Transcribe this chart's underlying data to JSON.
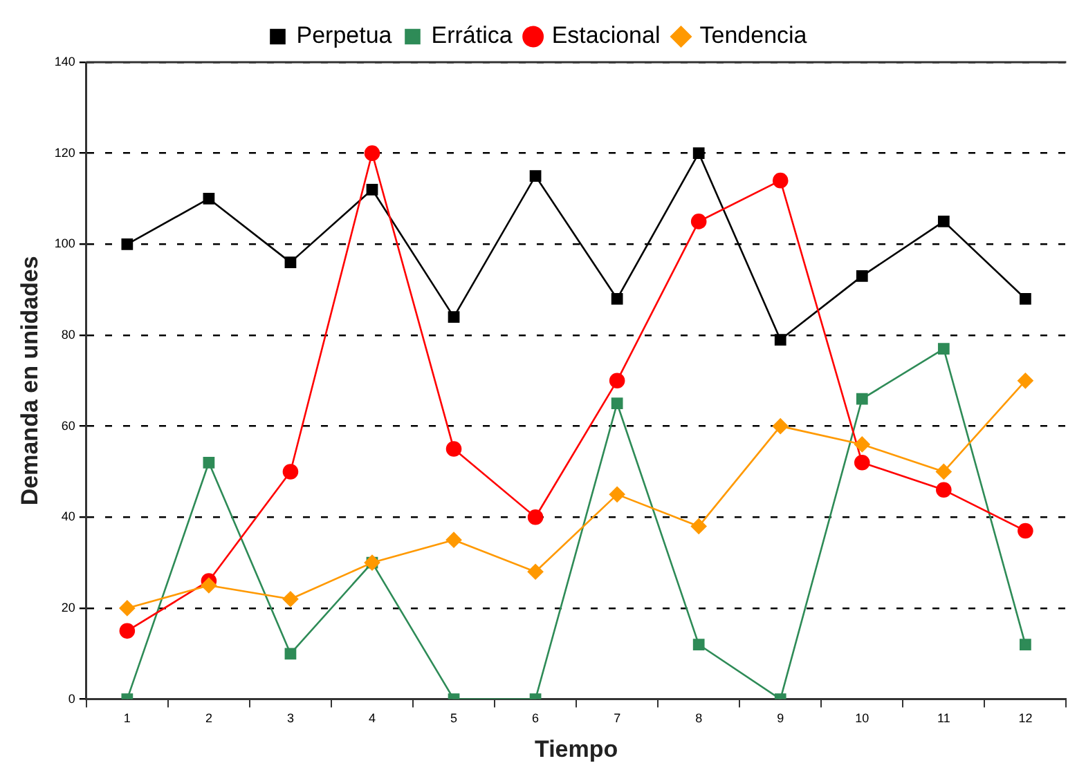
{
  "chart_data": {
    "type": "line",
    "xlabel": "Tiempo",
    "ylabel": "Demanda en unidades",
    "categories": [
      "1",
      "2",
      "3",
      "4",
      "5",
      "6",
      "7",
      "8",
      "9",
      "10",
      "11",
      "12"
    ],
    "ylim": [
      0,
      140
    ],
    "yticks": [
      0,
      20,
      40,
      60,
      80,
      100,
      120,
      140
    ],
    "grid": "y",
    "legend": "top",
    "line_style": "solid",
    "series": [
      {
        "name": "Perpetua",
        "color": "#000000",
        "marker": "square",
        "values": [
          100,
          110,
          96,
          112,
          84,
          115,
          88,
          120,
          79,
          93,
          105,
          88
        ]
      },
      {
        "name": "Errática",
        "color": "#2e8b57",
        "marker": "square",
        "values": [
          0,
          52,
          10,
          30,
          0,
          0,
          65,
          12,
          0,
          66,
          77,
          12
        ]
      },
      {
        "name": "Estacional",
        "color": "#ff0000",
        "marker": "circle",
        "values": [
          15,
          26,
          50,
          120,
          55,
          40,
          70,
          105,
          114,
          52,
          46,
          37
        ]
      },
      {
        "name": "Tendencia",
        "color": "#ff9900",
        "marker": "diamond",
        "values": [
          20,
          25,
          22,
          30,
          35,
          28,
          45,
          38,
          60,
          56,
          50,
          70
        ]
      }
    ]
  }
}
